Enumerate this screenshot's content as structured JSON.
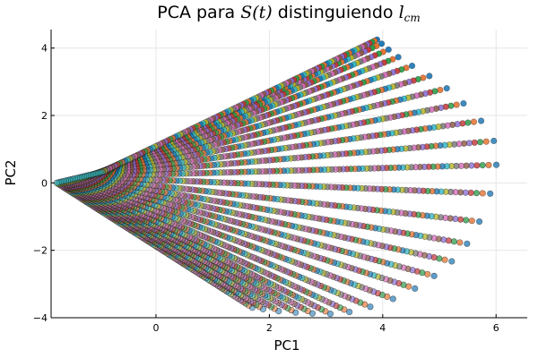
{
  "chart_data": {
    "type": "scatter",
    "title_prefix": "PCA para ",
    "title_math": "S(t)",
    "title_middle": " distinguiendo ",
    "title_var": "l",
    "title_sub": "cm",
    "xlabel": "PC1",
    "ylabel": "PC2",
    "xlim": [
      -1.85,
      6.55
    ],
    "ylim": [
      -4.0,
      4.55
    ],
    "xticks": [
      0,
      2,
      4,
      6
    ],
    "yticks": [
      -4,
      -2,
      0,
      2,
      4
    ],
    "xtick_labels": [
      "0",
      "2",
      "4",
      "6"
    ],
    "ytick_labels": [
      "−4",
      "−2",
      "0",
      "2",
      "4"
    ],
    "grid": true,
    "legend": "none",
    "series_colors": [
      "#1f77b4",
      "#e26f2c",
      "#2b9a48",
      "#c33737",
      "#8a6bcf",
      "#8b5a44",
      "#d36ab7",
      "#777777",
      "#b5b52a",
      "#2fb6c4"
    ],
    "first_curve": {
      "x": [
        3.9,
        4.3,
        5.2,
        6.0,
        5.6,
        4.7,
        3.5,
        2.5,
        1.7
      ],
      "y": [
        4.25,
        3.7,
        2.7,
        1.0,
        -1.5,
        -3.0,
        -3.8,
        -3.85,
        -3.7
      ]
    },
    "last_curve": {
      "x": [
        -1.75,
        -1.35,
        -0.95
      ],
      "y": [
        0.75,
        0.42,
        0.32
      ]
    },
    "tail_point": {
      "x": -1.75,
      "y": 0.0
    },
    "num_curves": 110,
    "points_per_curve": 26
  }
}
